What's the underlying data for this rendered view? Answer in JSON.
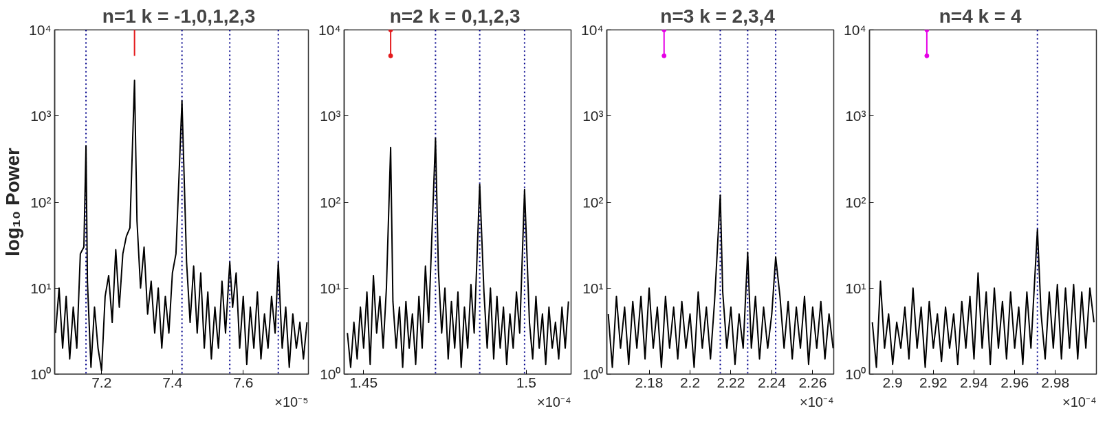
{
  "chart_data": [
    {
      "type": "line",
      "title": "n=1  k = -1,0,1,2,3",
      "ylabel": "log₁₀ Power",
      "log": "y",
      "xlim": [
        7.0675,
        7.784
      ],
      "xticks": [
        7.2,
        7.4,
        7.6
      ],
      "ylim": [
        1,
        10000
      ],
      "yticks": [
        {
          "value": 1,
          "label": "10⁰"
        },
        {
          "value": 10,
          "label": "10¹"
        },
        {
          "value": 100,
          "label": "10²"
        },
        {
          "value": 1000,
          "label": "10³"
        },
        {
          "value": 10000,
          "label": "10⁴"
        }
      ],
      "annotations": [
        "×10⁻⁵"
      ],
      "ref_lines": [
        {
          "axis": "x",
          "value": 7.156,
          "color": "#00008b",
          "line_style": "dotted"
        },
        {
          "axis": "x",
          "value": 7.427,
          "color": "#00008b",
          "line_style": "dotted"
        },
        {
          "axis": "x",
          "value": 7.562,
          "color": "#00008b",
          "line_style": "dotted"
        },
        {
          "axis": "x",
          "value": 7.699,
          "color": "#00008b",
          "line_style": "dotted"
        }
      ],
      "series": [
        {
          "color": "#000000",
          "marker": "none",
          "x": [
            7.07,
            7.08,
            7.09,
            7.1,
            7.11,
            7.12,
            7.13,
            7.14,
            7.15,
            7.156,
            7.16,
            7.17,
            7.18,
            7.19,
            7.2,
            7.21,
            7.22,
            7.23,
            7.24,
            7.25,
            7.26,
            7.27,
            7.28,
            7.293,
            7.3,
            7.31,
            7.32,
            7.33,
            7.34,
            7.35,
            7.36,
            7.37,
            7.38,
            7.39,
            7.4,
            7.41,
            7.427,
            7.44,
            7.45,
            7.46,
            7.47,
            7.48,
            7.49,
            7.5,
            7.51,
            7.52,
            7.53,
            7.54,
            7.55,
            7.562,
            7.57,
            7.58,
            7.59,
            7.6,
            7.61,
            7.62,
            7.63,
            7.64,
            7.65,
            7.66,
            7.67,
            7.68,
            7.69,
            7.699,
            7.71,
            7.72,
            7.73,
            7.74,
            7.75,
            7.76,
            7.77,
            7.78
          ],
          "values": [
            3,
            10,
            2,
            8,
            1.5,
            6,
            2,
            25,
            30,
            450,
            12,
            1.2,
            6,
            2,
            1.1,
            8,
            14,
            4,
            28,
            6,
            25,
            40,
            50,
            2600,
            60,
            10,
            30,
            5,
            12,
            3,
            10,
            2,
            8,
            3,
            15,
            25,
            1500,
            20,
            4,
            18,
            3,
            15,
            2,
            9,
            1.5,
            6,
            2,
            12,
            3,
            20,
            6,
            15,
            2,
            8,
            1.3,
            6,
            2,
            9,
            1.5,
            5,
            2,
            8,
            3,
            20,
            2,
            6,
            1.2,
            5,
            2,
            4,
            1.5,
            4
          ]
        },
        {
          "color": "#e41a1c",
          "marker": "none",
          "x": [
            7.293,
            7.293
          ],
          "values": [
            10000,
            5000
          ]
        }
      ]
    },
    {
      "type": "line",
      "title": "n=2  k = 0,1,2,3",
      "log": "y",
      "xlim": [
        1.444,
        1.5138
      ],
      "xticks": [
        1.45,
        1.5
      ],
      "ylim": [
        1,
        10000
      ],
      "yticks": [
        {
          "value": 1,
          "label": "10⁰"
        },
        {
          "value": 10,
          "label": "10¹"
        },
        {
          "value": 100,
          "label": "10²"
        },
        {
          "value": 1000,
          "label": "10³"
        },
        {
          "value": 10000,
          "label": "10⁴"
        }
      ],
      "annotations": [
        "×10⁻⁴"
      ],
      "ref_lines": [
        {
          "axis": "x",
          "value": 1.4721,
          "color": "#00008b",
          "line_style": "dotted"
        },
        {
          "axis": "x",
          "value": 1.4857,
          "color": "#00008b",
          "line_style": "dotted"
        },
        {
          "axis": "x",
          "value": 1.4995,
          "color": "#00008b",
          "line_style": "dotted"
        }
      ],
      "series": [
        {
          "color": "#000000",
          "marker": "none",
          "x": [
            1.445,
            1.446,
            1.447,
            1.448,
            1.449,
            1.45,
            1.451,
            1.452,
            1.453,
            1.454,
            1.455,
            1.456,
            1.457,
            1.4583,
            1.459,
            1.46,
            1.461,
            1.462,
            1.463,
            1.464,
            1.465,
            1.466,
            1.467,
            1.468,
            1.469,
            1.47,
            1.4721,
            1.473,
            1.474,
            1.475,
            1.476,
            1.477,
            1.478,
            1.479,
            1.48,
            1.481,
            1.482,
            1.483,
            1.484,
            1.4857,
            1.487,
            1.488,
            1.489,
            1.49,
            1.491,
            1.492,
            1.493,
            1.494,
            1.495,
            1.496,
            1.497,
            1.498,
            1.4995,
            1.501,
            1.502,
            1.503,
            1.504,
            1.505,
            1.506,
            1.507,
            1.508,
            1.509,
            1.51,
            1.511,
            1.512,
            1.513
          ],
          "values": [
            3,
            1.2,
            4,
            1.5,
            6,
            2,
            9,
            1.3,
            14,
            3,
            8,
            2,
            10,
            430,
            7,
            2,
            6,
            1.2,
            7,
            2,
            5,
            1.3,
            8,
            2,
            18,
            4,
            550,
            16,
            3,
            10,
            1.5,
            7,
            2,
            9,
            1.2,
            6,
            2,
            11,
            3,
            160,
            9,
            2,
            10,
            1.5,
            8,
            2,
            6,
            1.3,
            5,
            2,
            9,
            3,
            140,
            4,
            1.5,
            8,
            2,
            5,
            1.3,
            6,
            2,
            4,
            1.5,
            6,
            2,
            7
          ]
        },
        {
          "color": "#e41a1c",
          "marker": "circle",
          "x": [
            1.4583,
            1.4583
          ],
          "values": [
            10000,
            5000
          ]
        }
      ]
    },
    {
      "type": "line",
      "title": "n=3  k = 2,3,4",
      "log": "y",
      "xlim": [
        2.1593,
        2.2703
      ],
      "xticks": [
        2.18,
        2.2,
        2.22,
        2.24,
        2.26
      ],
      "ylim": [
        1,
        10000
      ],
      "yticks": [
        {
          "value": 1,
          "label": "10⁰"
        },
        {
          "value": 10,
          "label": "10¹"
        },
        {
          "value": 100,
          "label": "10²"
        },
        {
          "value": 1000,
          "label": "10³"
        },
        {
          "value": 10000,
          "label": "10⁴"
        }
      ],
      "annotations": [
        "×10⁻⁴"
      ],
      "ref_lines": [
        {
          "axis": "x",
          "value": 2.2148,
          "color": "#00008b",
          "line_style": "dotted"
        },
        {
          "axis": "x",
          "value": 2.2282,
          "color": "#00008b",
          "line_style": "dotted"
        },
        {
          "axis": "x",
          "value": 2.2419,
          "color": "#00008b",
          "line_style": "dotted"
        }
      ],
      "series": [
        {
          "color": "#000000",
          "marker": "none",
          "x": [
            2.16,
            2.162,
            2.164,
            2.166,
            2.168,
            2.17,
            2.172,
            2.174,
            2.176,
            2.178,
            2.18,
            2.182,
            2.184,
            2.186,
            2.188,
            2.19,
            2.192,
            2.194,
            2.196,
            2.198,
            2.2,
            2.202,
            2.204,
            2.206,
            2.208,
            2.21,
            2.212,
            2.2148,
            2.216,
            2.218,
            2.22,
            2.222,
            2.224,
            2.226,
            2.2282,
            2.23,
            2.232,
            2.234,
            2.236,
            2.238,
            2.24,
            2.2419,
            2.244,
            2.246,
            2.248,
            2.25,
            2.252,
            2.254,
            2.256,
            2.258,
            2.26,
            2.262,
            2.264,
            2.266,
            2.268,
            2.27
          ],
          "values": [
            5,
            1.2,
            8,
            2,
            6,
            1.3,
            7,
            2,
            8,
            1.5,
            10,
            2,
            6,
            1.2,
            8,
            2,
            6,
            1.5,
            7,
            2,
            5,
            1.2,
            9,
            2,
            6,
            1.5,
            7,
            120,
            9,
            2,
            6,
            1.3,
            5,
            2,
            26,
            2,
            8,
            1.5,
            6,
            2,
            5,
            23,
            8,
            2,
            7,
            1.5,
            6,
            2,
            8,
            1.3,
            6,
            2,
            7,
            1.5,
            5,
            2
          ]
        },
        {
          "color": "#e600e6",
          "marker": "circle",
          "x": [
            2.1873,
            2.1873
          ],
          "values": [
            10000,
            5000
          ]
        }
      ]
    },
    {
      "type": "line",
      "title": "n=4  k = 4",
      "log": "y",
      "xlim": [
        2.8886,
        3.0002
      ],
      "xticks": [
        2.9,
        2.92,
        2.94,
        2.96,
        2.98
      ],
      "ylim": [
        1,
        10000
      ],
      "yticks": [
        {
          "value": 1,
          "label": "10⁰"
        },
        {
          "value": 10,
          "label": "10¹"
        },
        {
          "value": 100,
          "label": "10²"
        },
        {
          "value": 1000,
          "label": "10³"
        },
        {
          "value": 10000,
          "label": "10⁴"
        }
      ],
      "annotations": [
        "×10⁻⁴"
      ],
      "ref_lines": [
        {
          "axis": "x",
          "value": 2.9712,
          "color": "#00008b",
          "line_style": "dotted"
        }
      ],
      "series": [
        {
          "color": "#000000",
          "marker": "none",
          "x": [
            2.89,
            2.892,
            2.894,
            2.896,
            2.898,
            2.9,
            2.902,
            2.904,
            2.906,
            2.908,
            2.91,
            2.912,
            2.914,
            2.916,
            2.918,
            2.92,
            2.922,
            2.924,
            2.926,
            2.928,
            2.93,
            2.932,
            2.934,
            2.936,
            2.938,
            2.94,
            2.942,
            2.944,
            2.946,
            2.948,
            2.95,
            2.952,
            2.954,
            2.956,
            2.958,
            2.96,
            2.962,
            2.964,
            2.966,
            2.968,
            2.9712,
            2.973,
            2.975,
            2.977,
            2.979,
            2.981,
            2.983,
            2.985,
            2.987,
            2.989,
            2.991,
            2.993,
            2.995,
            2.997,
            2.999
          ],
          "values": [
            4,
            1.2,
            12,
            2,
            5,
            1.3,
            4,
            2,
            6,
            1.5,
            10,
            2,
            6,
            1.2,
            7,
            2,
            5,
            1.4,
            6,
            2,
            5,
            1.3,
            7,
            2,
            8,
            1.5,
            15,
            2,
            9,
            1.3,
            10,
            2,
            7,
            1.5,
            9,
            2,
            6,
            1.3,
            9,
            2,
            48,
            5,
            1.5,
            9,
            2,
            11,
            1.5,
            10,
            2,
            11,
            1.5,
            9,
            2,
            10,
            4
          ]
        },
        {
          "color": "#e600e6",
          "marker": "circle",
          "x": [
            2.9168,
            2.9168
          ],
          "values": [
            10000,
            5000
          ]
        }
      ]
    }
  ]
}
